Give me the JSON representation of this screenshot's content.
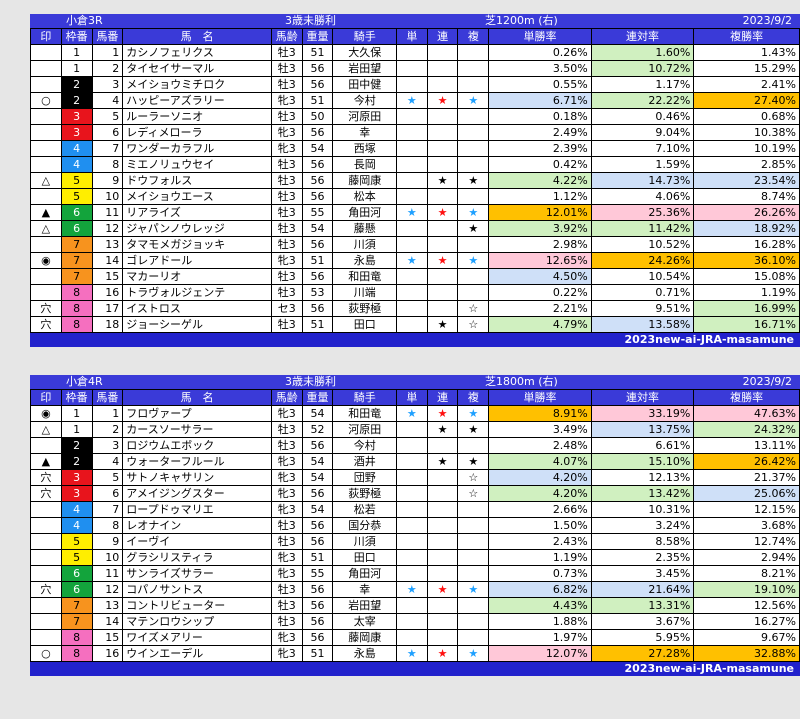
{
  "races": [
    {
      "id": "r3",
      "header": {
        "venue_race": "小倉3R",
        "class": "3歳未勝利",
        "course": "芝1200m (右)",
        "date": "2023/9/2"
      },
      "columns": [
        "印",
        "枠番",
        "馬番",
        "馬　名",
        "馬齢",
        "重量",
        "騎手",
        "単",
        "連",
        "複",
        "単勝率",
        "連対率",
        "複勝率"
      ],
      "footer": "2023new-ai-JRA-masamune",
      "rows": [
        {
          "mark": "",
          "waku": "1",
          "uma": "1",
          "name": "カシノフェリクス",
          "age": "牡3",
          "wt": "51",
          "jockey": "大久保",
          "tan": "",
          "ren": "",
          "fuku": "",
          "p1": "0.26%",
          "p2": "1.60%",
          "p3": "1.43%"
        },
        {
          "mark": "",
          "waku": "1",
          "uma": "2",
          "name": "タイセイサーマル",
          "age": "牡3",
          "wt": "56",
          "jockey": "岩田望",
          "tan": "",
          "ren": "",
          "fuku": "",
          "p1": "3.50%",
          "p2": "10.72%",
          "p3": "15.29%"
        },
        {
          "mark": "",
          "waku": "2",
          "uma": "3",
          "name": "メイショウミチロク",
          "age": "牡3",
          "wt": "56",
          "jockey": "田中健",
          "tan": "",
          "ren": "",
          "fuku": "",
          "p1": "0.55%",
          "p2": "1.17%",
          "p3": "2.41%"
        },
        {
          "mark": "○",
          "waku": "2",
          "uma": "4",
          "name": "ハッピーアズラリー",
          "age": "牝3",
          "wt": "51",
          "jockey": "今村",
          "tan": "★",
          "ren": "★",
          "fuku": "★",
          "p1": "6.71%",
          "p2": "22.22%",
          "p3": "27.40%"
        },
        {
          "mark": "",
          "waku": "3",
          "uma": "5",
          "name": "ルーラーソニオ",
          "age": "牡3",
          "wt": "50",
          "jockey": "河原田",
          "tan": "",
          "ren": "",
          "fuku": "",
          "p1": "0.18%",
          "p2": "0.46%",
          "p3": "0.68%"
        },
        {
          "mark": "",
          "waku": "3",
          "uma": "6",
          "name": "レディメローラ",
          "age": "牝3",
          "wt": "56",
          "jockey": "幸",
          "tan": "",
          "ren": "",
          "fuku": "",
          "p1": "2.49%",
          "p2": "9.04%",
          "p3": "10.38%"
        },
        {
          "mark": "",
          "waku": "4",
          "uma": "7",
          "name": "ワンダーカラフル",
          "age": "牝3",
          "wt": "54",
          "jockey": "西塚",
          "tan": "",
          "ren": "",
          "fuku": "",
          "p1": "2.39%",
          "p2": "7.10%",
          "p3": "10.19%"
        },
        {
          "mark": "",
          "waku": "4",
          "uma": "8",
          "name": "ミエノリュウセイ",
          "age": "牡3",
          "wt": "56",
          "jockey": "長岡",
          "tan": "",
          "ren": "",
          "fuku": "",
          "p1": "0.42%",
          "p2": "1.59%",
          "p3": "2.85%"
        },
        {
          "mark": "△",
          "waku": "5",
          "uma": "9",
          "name": "ドウフォルス",
          "age": "牡3",
          "wt": "56",
          "jockey": "藤岡康",
          "tan": "",
          "ren": "★",
          "fuku": "★",
          "p1": "4.22%",
          "p2": "14.73%",
          "p3": "23.54%"
        },
        {
          "mark": "",
          "waku": "5",
          "uma": "10",
          "name": "メイショウエース",
          "age": "牡3",
          "wt": "56",
          "jockey": "松本",
          "tan": "",
          "ren": "",
          "fuku": "",
          "p1": "1.12%",
          "p2": "4.06%",
          "p3": "8.74%"
        },
        {
          "mark": "▲",
          "waku": "6",
          "uma": "11",
          "name": "リアライズ",
          "age": "牡3",
          "wt": "55",
          "jockey": "角田河",
          "tan": "★",
          "ren": "★",
          "fuku": "★",
          "p1": "12.01%",
          "p2": "25.36%",
          "p3": "26.26%"
        },
        {
          "mark": "△",
          "waku": "6",
          "uma": "12",
          "name": "ジャパンノウレッジ",
          "age": "牡3",
          "wt": "54",
          "jockey": "藤懸",
          "tan": "",
          "ren": "",
          "fuku": "★",
          "p1": "3.92%",
          "p2": "11.42%",
          "p3": "18.92%"
        },
        {
          "mark": "",
          "waku": "7",
          "uma": "13",
          "name": "タマモメガジョッキ",
          "age": "牡3",
          "wt": "56",
          "jockey": "川須",
          "tan": "",
          "ren": "",
          "fuku": "",
          "p1": "2.98%",
          "p2": "10.52%",
          "p3": "16.28%"
        },
        {
          "mark": "◉",
          "waku": "7",
          "uma": "14",
          "name": "ゴレアドール",
          "age": "牝3",
          "wt": "51",
          "jockey": "永島",
          "tan": "★",
          "ren": "★",
          "fuku": "★",
          "p1": "12.65%",
          "p2": "24.26%",
          "p3": "36.10%"
        },
        {
          "mark": "",
          "waku": "7",
          "uma": "15",
          "name": "マカーリオ",
          "age": "牡3",
          "wt": "56",
          "jockey": "和田竜",
          "tan": "",
          "ren": "",
          "fuku": "",
          "p1": "4.50%",
          "p2": "10.54%",
          "p3": "15.08%"
        },
        {
          "mark": "",
          "waku": "8",
          "uma": "16",
          "name": "トラヴォルジェンテ",
          "age": "牡3",
          "wt": "53",
          "jockey": "川端",
          "tan": "",
          "ren": "",
          "fuku": "",
          "p1": "0.22%",
          "p2": "0.71%",
          "p3": "1.19%"
        },
        {
          "mark": "穴",
          "waku": "8",
          "uma": "17",
          "name": "イストロス",
          "age": "セ3",
          "wt": "56",
          "jockey": "荻野極",
          "tan": "",
          "ren": "",
          "fuku": "☆",
          "p1": "2.21%",
          "p2": "9.51%",
          "p3": "16.99%"
        },
        {
          "mark": "穴",
          "waku": "8",
          "uma": "18",
          "name": "ジョーシーゲル",
          "age": "牡3",
          "wt": "51",
          "jockey": "田口",
          "tan": "",
          "ren": "★",
          "fuku": "☆",
          "p1": "4.79%",
          "p2": "13.58%",
          "p3": "16.71%"
        }
      ],
      "colors": [
        [
          "",
          "#d0f0c0",
          ""
        ],
        [
          "",
          "#d0f0c0",
          ""
        ],
        [
          "",
          "",
          ""
        ],
        [
          "#cfe0f8",
          "#d0f0c0",
          "#ffc000"
        ],
        [
          "",
          "",
          ""
        ],
        [
          "",
          "",
          ""
        ],
        [
          "",
          "",
          ""
        ],
        [
          "",
          "",
          ""
        ],
        [
          "#d0f0c0",
          "#cfe0f8",
          "#cfe0f8"
        ],
        [
          "",
          "",
          ""
        ],
        [
          "#ffc000",
          "#ffc8d8",
          "#ffc8d8"
        ],
        [
          "#d0f0c0",
          "#d0f0c0",
          "#cfe0f8"
        ],
        [
          "",
          "",
          ""
        ],
        [
          "#ffc8d8",
          "#ffc000",
          "#ffc000"
        ],
        [
          "#cfe0f8",
          "",
          ""
        ],
        [
          "",
          "",
          ""
        ],
        [
          "",
          "",
          "#d0f0c0"
        ],
        [
          "#d0f0c0",
          "#cfe0f8",
          "#d0f0c0"
        ]
      ]
    },
    {
      "id": "r4",
      "header": {
        "venue_race": "小倉4R",
        "class": "3歳未勝利",
        "course": "芝1800m (右)",
        "date": "2023/9/2"
      },
      "columns": [
        "印",
        "枠番",
        "馬番",
        "馬　名",
        "馬齢",
        "重量",
        "騎手",
        "単",
        "連",
        "複",
        "単勝率",
        "連対率",
        "複勝率"
      ],
      "footer": "2023new-ai-JRA-masamune",
      "rows": [
        {
          "mark": "◉",
          "waku": "1",
          "uma": "1",
          "name": "フロヴァープ",
          "age": "牝3",
          "wt": "54",
          "jockey": "和田竜",
          "tan": "★",
          "ren": "★",
          "fuku": "★",
          "p1": "8.91%",
          "p2": "33.19%",
          "p3": "47.63%"
        },
        {
          "mark": "△",
          "waku": "1",
          "uma": "2",
          "name": "カースソーサラー",
          "age": "牡3",
          "wt": "52",
          "jockey": "河原田",
          "tan": "",
          "ren": "★",
          "fuku": "★",
          "p1": "3.49%",
          "p2": "13.75%",
          "p3": "24.32%"
        },
        {
          "mark": "",
          "waku": "2",
          "uma": "3",
          "name": "ロジウムエボック",
          "age": "牡3",
          "wt": "56",
          "jockey": "今村",
          "tan": "",
          "ren": "",
          "fuku": "",
          "p1": "2.48%",
          "p2": "6.61%",
          "p3": "13.11%"
        },
        {
          "mark": "▲",
          "waku": "2",
          "uma": "4",
          "name": "ウォーターフルール",
          "age": "牝3",
          "wt": "54",
          "jockey": "酒井",
          "tan": "",
          "ren": "★",
          "fuku": "★",
          "p1": "4.07%",
          "p2": "15.10%",
          "p3": "26.42%"
        },
        {
          "mark": "穴",
          "waku": "3",
          "uma": "5",
          "name": "サトノキャサリン",
          "age": "牝3",
          "wt": "54",
          "jockey": "団野",
          "tan": "",
          "ren": "",
          "fuku": "☆",
          "p1": "4.20%",
          "p2": "12.13%",
          "p3": "21.37%"
        },
        {
          "mark": "穴",
          "waku": "3",
          "uma": "6",
          "name": "アメイジングスター",
          "age": "牝3",
          "wt": "56",
          "jockey": "荻野極",
          "tan": "",
          "ren": "",
          "fuku": "☆",
          "p1": "4.20%",
          "p2": "13.42%",
          "p3": "25.06%"
        },
        {
          "mark": "",
          "waku": "4",
          "uma": "7",
          "name": "ロープドゥマリエ",
          "age": "牝3",
          "wt": "54",
          "jockey": "松若",
          "tan": "",
          "ren": "",
          "fuku": "",
          "p1": "2.66%",
          "p2": "10.31%",
          "p3": "12.15%"
        },
        {
          "mark": "",
          "waku": "4",
          "uma": "8",
          "name": "レオナイン",
          "age": "牡3",
          "wt": "56",
          "jockey": "国分恭",
          "tan": "",
          "ren": "",
          "fuku": "",
          "p1": "1.50%",
          "p2": "3.24%",
          "p3": "3.68%"
        },
        {
          "mark": "",
          "waku": "5",
          "uma": "9",
          "name": "イーヴイ",
          "age": "牡3",
          "wt": "56",
          "jockey": "川須",
          "tan": "",
          "ren": "",
          "fuku": "",
          "p1": "2.43%",
          "p2": "8.58%",
          "p3": "12.74%"
        },
        {
          "mark": "",
          "waku": "5",
          "uma": "10",
          "name": "グラシリスティラ",
          "age": "牝3",
          "wt": "51",
          "jockey": "田口",
          "tan": "",
          "ren": "",
          "fuku": "",
          "p1": "1.19%",
          "p2": "2.35%",
          "p3": "2.94%"
        },
        {
          "mark": "",
          "waku": "6",
          "uma": "11",
          "name": "サンライズサラー",
          "age": "牝3",
          "wt": "55",
          "jockey": "角田河",
          "tan": "",
          "ren": "",
          "fuku": "",
          "p1": "0.73%",
          "p2": "3.45%",
          "p3": "8.21%"
        },
        {
          "mark": "穴",
          "waku": "6",
          "uma": "12",
          "name": "コパノサントス",
          "age": "牡3",
          "wt": "56",
          "jockey": "幸",
          "tan": "★",
          "ren": "★",
          "fuku": "★",
          "p1": "6.82%",
          "p2": "21.64%",
          "p3": "19.10%"
        },
        {
          "mark": "",
          "waku": "7",
          "uma": "13",
          "name": "コントリビューター",
          "age": "牡3",
          "wt": "56",
          "jockey": "岩田望",
          "tan": "",
          "ren": "",
          "fuku": "",
          "p1": "4.43%",
          "p2": "13.31%",
          "p3": "12.56%"
        },
        {
          "mark": "",
          "waku": "7",
          "uma": "14",
          "name": "マテンロウシップ",
          "age": "牡3",
          "wt": "56",
          "jockey": "太宰",
          "tan": "",
          "ren": "",
          "fuku": "",
          "p1": "1.88%",
          "p2": "3.67%",
          "p3": "16.27%"
        },
        {
          "mark": "",
          "waku": "8",
          "uma": "15",
          "name": "ワイズメアリー",
          "age": "牝3",
          "wt": "56",
          "jockey": "藤岡康",
          "tan": "",
          "ren": "",
          "fuku": "",
          "p1": "1.97%",
          "p2": "5.95%",
          "p3": "9.67%"
        },
        {
          "mark": "○",
          "waku": "8",
          "uma": "16",
          "name": "ウインエーデル",
          "age": "牝3",
          "wt": "51",
          "jockey": "永島",
          "tan": "★",
          "ren": "★",
          "fuku": "★",
          "p1": "12.07%",
          "p2": "27.28%",
          "p3": "32.88%"
        }
      ],
      "colors": [
        [
          "#ffc000",
          "#ffc8d8",
          "#ffc8d8"
        ],
        [
          "",
          "#cfe0f8",
          "#d0f0c0"
        ],
        [
          "",
          "",
          ""
        ],
        [
          "#d0f0c0",
          "#d0f0c0",
          "#ffc000"
        ],
        [
          "#cfe0f8",
          "",
          ""
        ],
        [
          "#d0f0c0",
          "#d0f0c0",
          "#cfe0f8"
        ],
        [
          "",
          "",
          ""
        ],
        [
          "",
          "",
          ""
        ],
        [
          "",
          "",
          ""
        ],
        [
          "",
          "",
          ""
        ],
        [
          "",
          "",
          ""
        ],
        [
          "#cfe0f8",
          "#cfe0f8",
          "#d0f0c0"
        ],
        [
          "#d0f0c0",
          "#d0f0c0",
          ""
        ],
        [
          "",
          "",
          ""
        ],
        [
          "",
          "",
          ""
        ],
        [
          "#ffc8d8",
          "#ffc000",
          "#ffc000"
        ]
      ]
    }
  ]
}
